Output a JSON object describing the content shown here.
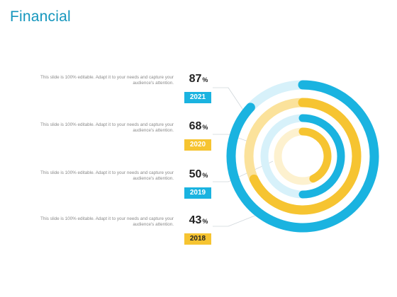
{
  "title": "Financial",
  "colors": {
    "title": "#1496bd",
    "blue": "#1ab3e0",
    "yellow": "#f6c431",
    "blue_light": "#d7f1fa",
    "yellow_light": "#fbe29b",
    "cream": "#fdf1cf",
    "text_gray": "#8a8a8a"
  },
  "chart_data": {
    "type": "radial-bar",
    "unit": "%",
    "items": [
      {
        "year": "2021",
        "value": 87,
        "desc": "This slide is 100% editable. Adapt it to your needs and capture your audience's attention.",
        "color": "#1ab3e0",
        "track": "#d7f1fa"
      },
      {
        "year": "2020",
        "value": 68,
        "desc": "This slide is 100% editable. Adapt it to your needs and capture your audience's attention.",
        "color": "#f6c431",
        "track": "#fbe29b"
      },
      {
        "year": "2019",
        "value": 50,
        "desc": "This slide is 100% editable. Adapt it to your needs and capture your audience's attention.",
        "color": "#1ab3e0",
        "track": "#d7f1fa"
      },
      {
        "year": "2018",
        "value": 43,
        "desc": "This slide is 100% editable. Adapt it to your needs and capture your audience's attention.",
        "color": "#f6c431",
        "track": "#fdf1cf"
      }
    ]
  }
}
